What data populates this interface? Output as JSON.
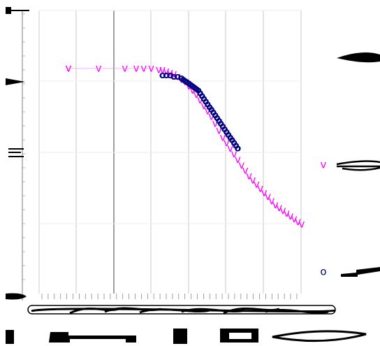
{
  "chart_data": {
    "type": "scatter",
    "xlabel": "",
    "ylabel": "",
    "xlim": [
      -0.8,
      6.2
    ],
    "ylim": [
      -0.05,
      2.0
    ],
    "grid": true,
    "legend": "right",
    "series": [
      {
        "name": "v",
        "marker": "v",
        "color": "#ff00ff",
        "x": [
          0.0,
          0.0,
          0.8,
          1.5,
          1.8,
          2.0,
          2.2,
          2.4,
          2.5,
          2.6,
          2.7,
          2.8,
          2.9,
          3.0,
          3.1,
          3.2,
          3.3,
          3.4,
          3.5,
          3.6,
          3.7,
          3.8,
          3.9,
          4.0,
          4.1,
          4.2,
          4.3,
          4.4,
          4.5,
          4.6,
          4.7,
          4.8,
          4.9,
          5.0,
          5.1,
          5.2,
          5.3,
          5.4,
          5.5,
          5.6,
          5.7,
          5.8,
          5.9,
          6.0,
          6.1,
          6.2
        ],
        "y": [
          1.58,
          1.58,
          1.58,
          1.58,
          1.58,
          1.58,
          1.58,
          1.57,
          1.57,
          1.56,
          1.55,
          1.54,
          1.52,
          1.5,
          1.48,
          1.45,
          1.42,
          1.39,
          1.35,
          1.31,
          1.27,
          1.23,
          1.18,
          1.13,
          1.08,
          1.04,
          1.0,
          0.96,
          0.92,
          0.88,
          0.84,
          0.8,
          0.77,
          0.74,
          0.71,
          0.68,
          0.65,
          0.62,
          0.59,
          0.57,
          0.55,
          0.53,
          0.51,
          0.49,
          0.47,
          0.45
        ]
      },
      {
        "name": "o",
        "marker": "o",
        "color": "#000080",
        "x": [
          2.5,
          2.6,
          2.7,
          2.8,
          2.9,
          3.0,
          3.05,
          3.1,
          3.15,
          3.2,
          3.25,
          3.3,
          3.35,
          3.4,
          3.45,
          3.5,
          3.55,
          3.6,
          3.65,
          3.7,
          3.75,
          3.8,
          3.85,
          3.9,
          3.95,
          4.0,
          4.05,
          4.1,
          4.15,
          4.2,
          4.25,
          4.3,
          4.35,
          4.4,
          4.45,
          4.5
        ],
        "y": [
          1.53,
          1.53,
          1.53,
          1.52,
          1.52,
          1.51,
          1.5,
          1.49,
          1.48,
          1.47,
          1.46,
          1.45,
          1.44,
          1.43,
          1.42,
          1.4,
          1.38,
          1.36,
          1.34,
          1.32,
          1.3,
          1.28,
          1.26,
          1.24,
          1.22,
          1.2,
          1.18,
          1.16,
          1.14,
          1.12,
          1.1,
          1.08,
          1.06,
          1.04,
          1.02,
          1.0
        ]
      }
    ]
  }
}
